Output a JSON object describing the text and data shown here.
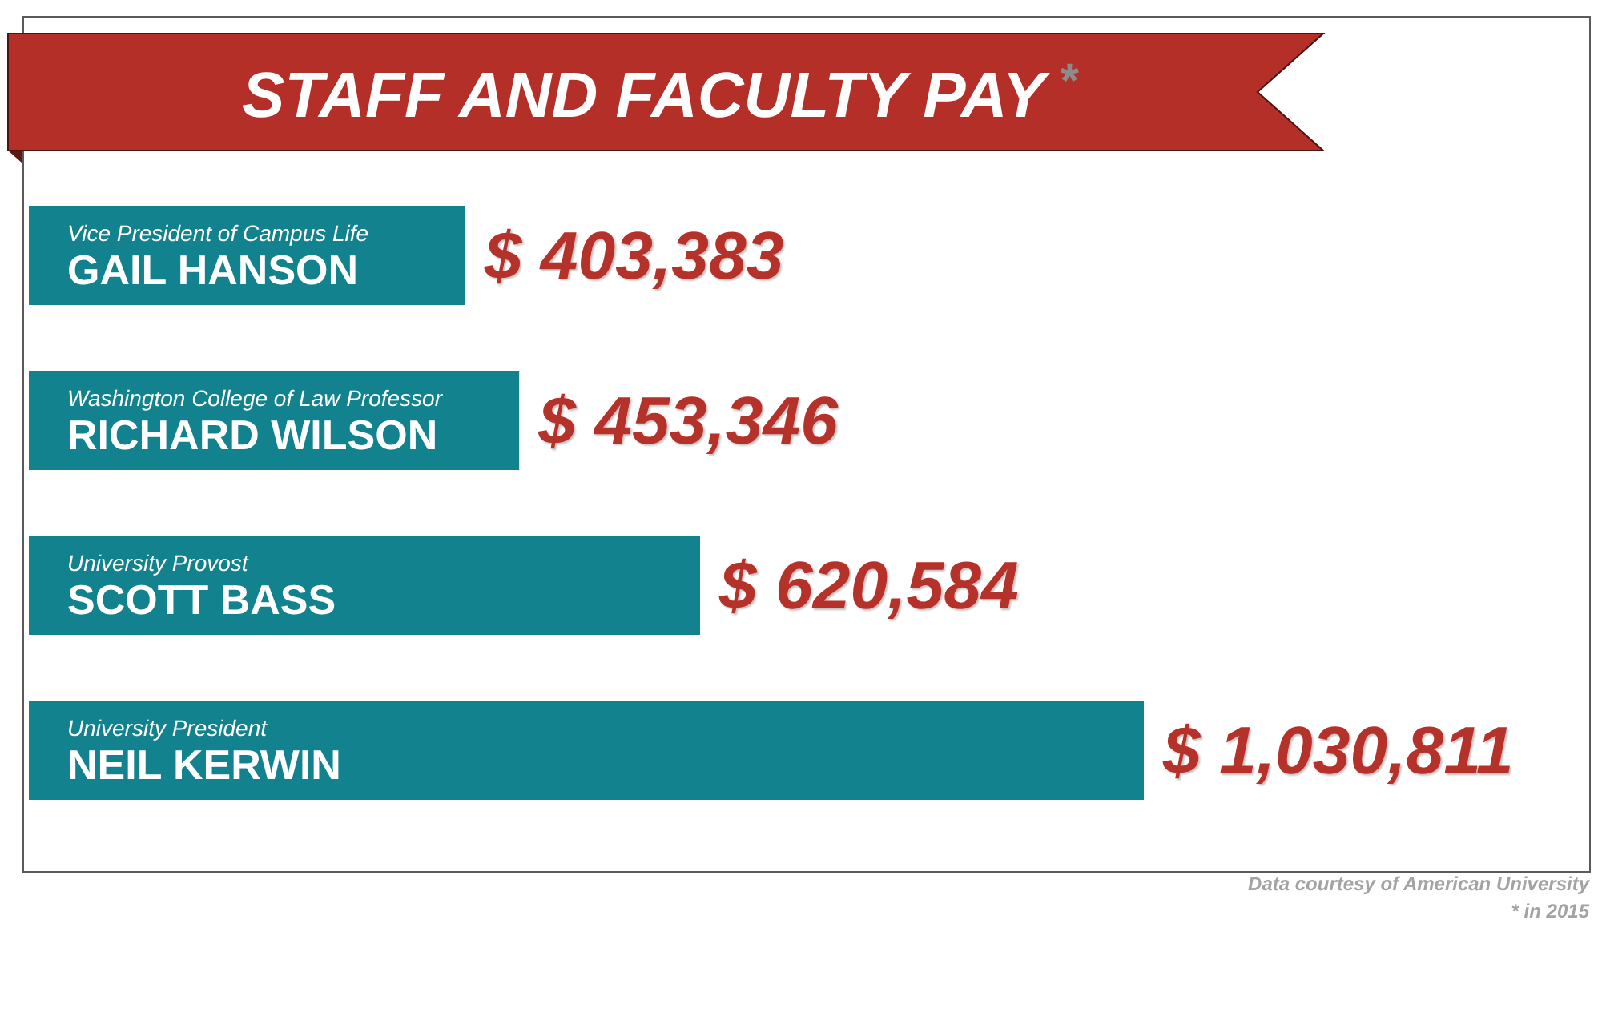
{
  "chart_data": {
    "type": "bar",
    "orientation": "horizontal",
    "title": "STAFF AND FACULTY PAY$^{*}$",
    "categories": [
      "Vice President of Campus Life\nGAIL HANSON",
      "Washington College of Law Professor\nRICHARD WILSON",
      "University Provost\nSCOTT BASS",
      "University President\nNEIL KERWIN"
    ],
    "values": [
      403383,
      453346,
      620584,
      1030811
    ],
    "color": "#12828f",
    "value_labels": [
      "$ 403,383",
      "$ 453,346",
      "$ 620,584",
      "$ 1,030,811"
    ],
    "annotations": [
      "Data courtesy of American University",
      "* in 2015"
    ],
    "grid": false,
    "tick_labels": "y"
  }
}
